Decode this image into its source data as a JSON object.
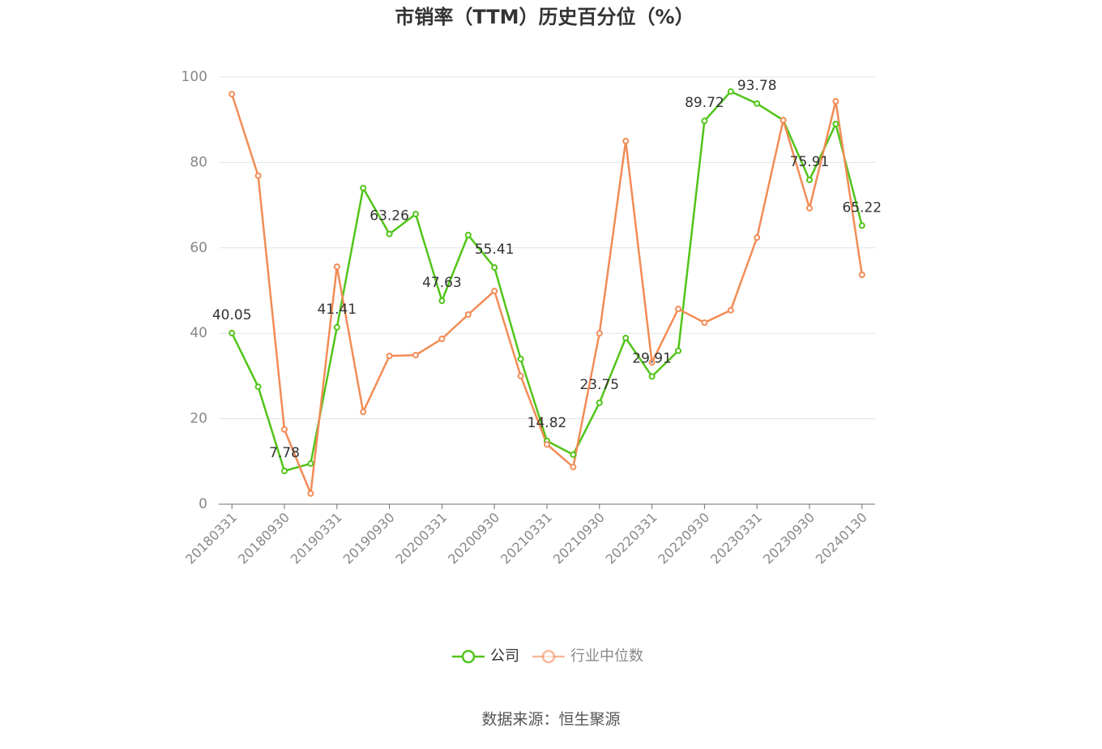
{
  "chart_data": {
    "type": "line",
    "title": "市销率（TTM）历史百分位（%）",
    "source": "数据来源：恒生聚源",
    "categories": [
      "20180331",
      null,
      "20180930",
      null,
      "20190331",
      null,
      "20190930",
      null,
      "20200331",
      null,
      "20200930",
      null,
      "20210331",
      null,
      "20210930",
      null,
      "20220331",
      null,
      "20220930",
      null,
      "20230331",
      null,
      "20230930",
      null,
      "20240130"
    ],
    "series": [
      {
        "name": "公司",
        "color": "#52c41a",
        "values": [
          40.05,
          27.5,
          7.78,
          9.5,
          41.41,
          74.0,
          63.26,
          67.9,
          47.63,
          63.0,
          55.41,
          34.0,
          14.82,
          11.6,
          23.75,
          38.9,
          29.91,
          35.9,
          89.72,
          96.6,
          93.78,
          89.9,
          75.91,
          89.0,
          65.22
        ]
      },
      {
        "name": "行业中位数",
        "color": "#f28c56",
        "values": [
          96.0,
          76.9,
          17.5,
          2.5,
          55.6,
          21.6,
          34.7,
          34.9,
          38.7,
          44.4,
          49.9,
          30.0,
          14.0,
          8.7,
          40.0,
          85.0,
          33.2,
          45.7,
          42.5,
          45.4,
          62.4,
          89.9,
          69.3,
          94.3,
          53.7
        ]
      }
    ],
    "ylim": [
      0,
      100
    ],
    "yticks": [
      0,
      20,
      40,
      60,
      80,
      100
    ],
    "grid": true,
    "legend": "bottom"
  }
}
